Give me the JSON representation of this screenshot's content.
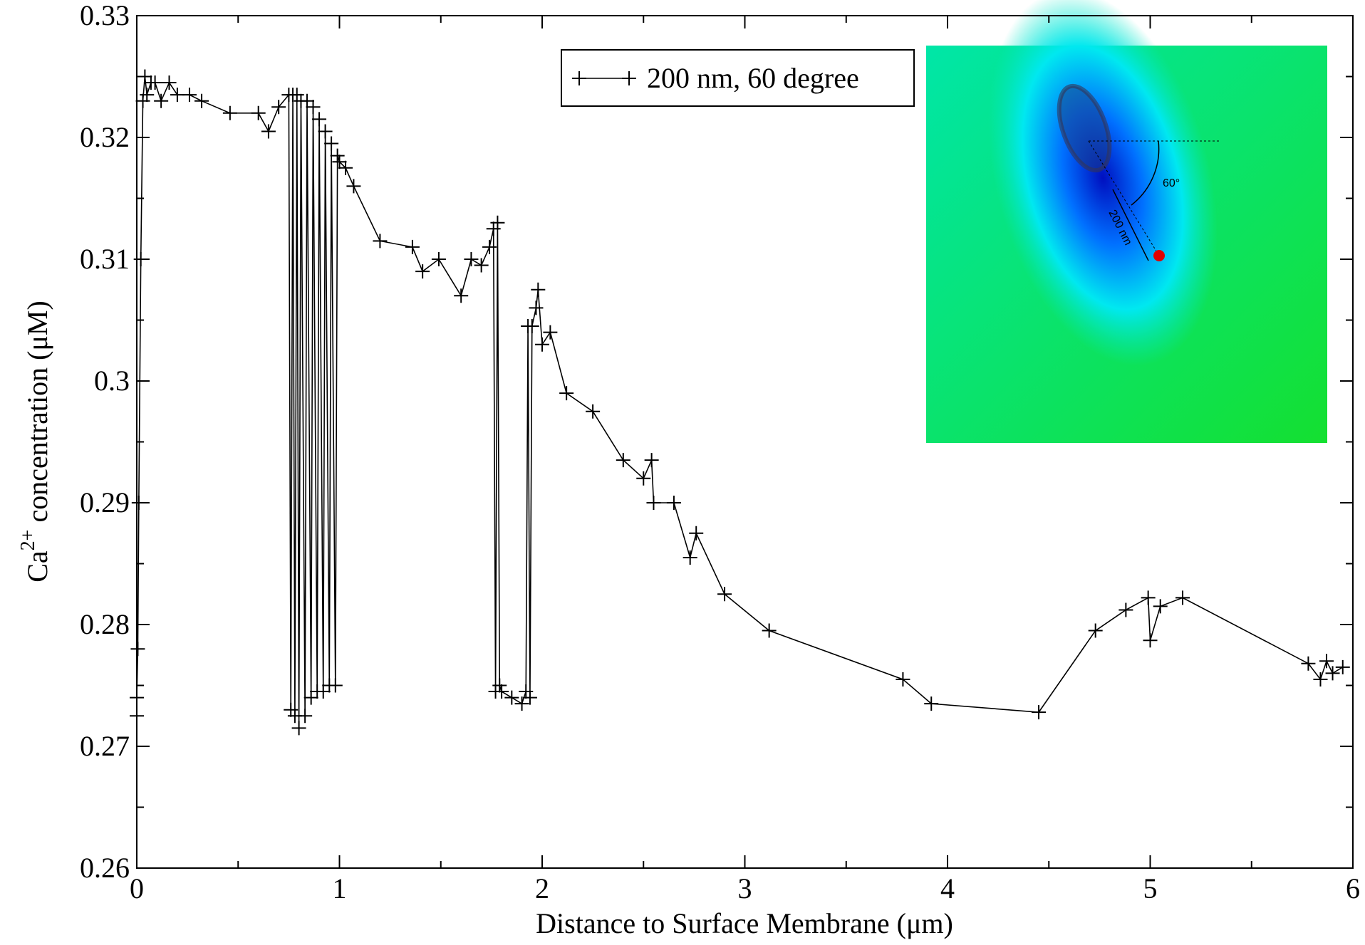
{
  "chart_data": {
    "type": "line",
    "x_label": "Distance to Surface Membrane (μm)",
    "y_label_parts": [
      "Ca",
      "2+",
      " concentration (μM)"
    ],
    "inset_labels": [
      "60°",
      "200 nm"
    ],
    "xlim": [
      0,
      6
    ],
    "xticks": [
      0,
      1,
      2,
      3,
      4,
      5,
      6
    ],
    "ylim": [
      0.26,
      0.33
    ],
    "yticks": [
      0.26,
      0.27,
      0.28,
      0.29,
      0.3,
      0.31,
      0.32,
      0.33
    ],
    "legend_position": "upper center",
    "series": [
      {
        "name": "200 nm, 60 degree",
        "color": "#000000",
        "x": [
          0,
          0,
          0.005,
          0.01,
          0.02,
          0.03,
          0.04,
          0.05,
          0.07,
          0.09,
          0.12,
          0.16,
          0.2,
          0.26,
          0.32,
          0.46,
          0.6,
          0.65,
          0.7,
          0.75,
          0.76,
          0.77,
          0.78,
          0.79,
          0.8,
          0.81,
          0.83,
          0.84,
          0.86,
          0.87,
          0.89,
          0.9,
          0.92,
          0.93,
          0.95,
          0.96,
          0.98,
          0.99,
          1.0,
          1.03,
          1.07,
          1.2,
          1.36,
          1.41,
          1.49,
          1.6,
          1.65,
          1.7,
          1.74,
          1.76,
          1.77,
          1.78,
          1.79,
          1.8,
          1.85,
          1.9,
          1.92,
          1.93,
          1.94,
          1.95,
          1.97,
          1.98,
          2.0,
          2.04,
          2.12,
          2.25,
          2.4,
          2.5,
          2.54,
          2.55,
          2.65,
          2.73,
          2.76,
          2.9,
          3.12,
          3.78,
          3.92,
          4.45,
          4.73,
          4.88,
          4.99,
          5.0,
          5.05,
          5.16,
          5.78,
          5.84,
          5.87,
          5.9,
          5.95
        ],
        "values": [
          0.2725,
          0.274,
          0.278,
          0.29,
          0.31,
          0.323,
          0.325,
          0.3235,
          0.3245,
          0.3245,
          0.323,
          0.3245,
          0.3235,
          0.3235,
          0.323,
          0.322,
          0.322,
          0.3205,
          0.3225,
          0.3235,
          0.273,
          0.3235,
          0.2725,
          0.3235,
          0.2715,
          0.323,
          0.2725,
          0.323,
          0.274,
          0.3225,
          0.2745,
          0.3215,
          0.2745,
          0.3205,
          0.275,
          0.3195,
          0.275,
          0.3185,
          0.318,
          0.3175,
          0.316,
          0.3115,
          0.311,
          0.309,
          0.31,
          0.307,
          0.31,
          0.3095,
          0.311,
          0.3125,
          0.2745,
          0.313,
          0.275,
          0.2745,
          0.274,
          0.2735,
          0.2745,
          0.3045,
          0.274,
          0.3045,
          0.306,
          0.3075,
          0.303,
          0.304,
          0.299,
          0.2975,
          0.2935,
          0.292,
          0.2935,
          0.29,
          0.29,
          0.2855,
          0.2875,
          0.2825,
          0.2795,
          0.2755,
          0.2735,
          0.2728,
          0.2795,
          0.2812,
          0.2822,
          0.2787,
          0.2815,
          0.2822,
          0.2768,
          0.2755,
          0.277,
          0.276,
          0.2765
        ]
      }
    ]
  }
}
